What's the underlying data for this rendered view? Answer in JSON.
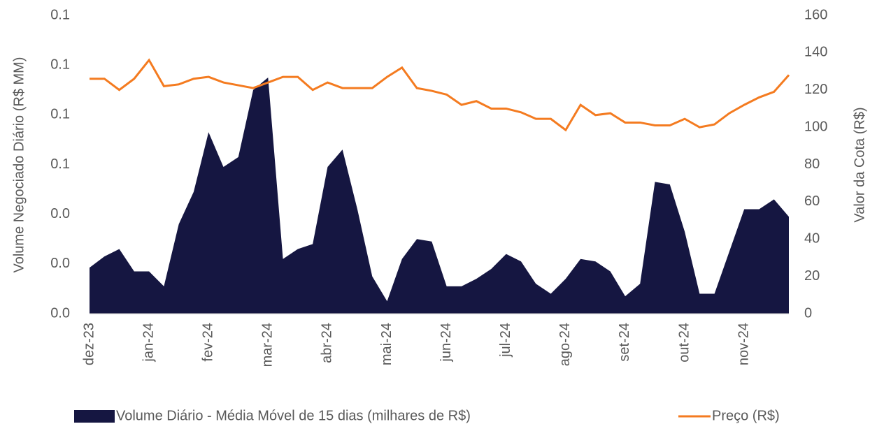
{
  "chart_data": {
    "type": "combo",
    "ylabel": "Volume Negociado Diário (R$ MM)",
    "y2label": "Valor da Cota (R$)",
    "categories": [
      "dez-23",
      null,
      null,
      null,
      "jan-24",
      null,
      null,
      null,
      "fev-24",
      null,
      null,
      null,
      "mar-24",
      null,
      null,
      null,
      "abr-24",
      null,
      null,
      null,
      "mai-24",
      null,
      null,
      null,
      "jun-24",
      null,
      null,
      null,
      "jul-24",
      null,
      null,
      null,
      "ago-24",
      null,
      null,
      null,
      "set-24",
      null,
      null,
      null,
      "out-24",
      null,
      null,
      null,
      "nov-24",
      null,
      null,
      null
    ],
    "series": [
      {
        "name": "Volume Diário - Média Móvel de 15 dias (milhares de R$)",
        "type": "area",
        "color": "#151641",
        "values": [
          0.0185,
          0.023,
          0.026,
          0.017,
          0.017,
          0.011,
          0.036,
          0.049,
          0.073,
          0.059,
          0.063,
          0.09,
          0.095,
          0.022,
          0.026,
          0.028,
          0.059,
          0.066,
          0.042,
          0.015,
          0.005,
          0.022,
          0.03,
          0.029,
          0.011,
          0.011,
          0.014,
          0.018,
          0.024,
          0.021,
          0.012,
          0.008,
          0.014,
          0.022,
          0.021,
          0.017,
          0.007,
          0.012,
          0.053,
          0.052,
          0.033,
          0.008,
          0.008,
          0.025,
          0.042,
          0.042,
          0.046,
          0.039
        ]
      },
      {
        "name": "Preço (R$)",
        "type": "line",
        "color": "#f47b20",
        "axis": "y2",
        "values": [
          126,
          126,
          120,
          126,
          136,
          122,
          123,
          126,
          127,
          124,
          122.5,
          121,
          124,
          127,
          127,
          120,
          124,
          121,
          121,
          121,
          127,
          132,
          121,
          119.5,
          117.5,
          112,
          114,
          110,
          110,
          108,
          104.5,
          104.5,
          98.5,
          112,
          106.5,
          107.5,
          102.5,
          102.5,
          101,
          101,
          104.5,
          100,
          101.5,
          107.5,
          112,
          116,
          119,
          128
        ]
      }
    ],
    "ylim": [
      0,
      0.12
    ],
    "yticks": [
      {
        "value": 0,
        "label": "0.0"
      },
      {
        "value": 0.02,
        "label": "0.0"
      },
      {
        "value": 0.04,
        "label": "0.0"
      },
      {
        "value": 0.06,
        "label": "0.1"
      },
      {
        "value": 0.08,
        "label": "0.1"
      },
      {
        "value": 0.1,
        "label": "0.1"
      },
      {
        "value": 0.12,
        "label": "0.1"
      }
    ],
    "y2lim": [
      0,
      160
    ],
    "y2ticks": [
      0,
      20,
      40,
      60,
      80,
      100,
      120,
      140,
      160
    ],
    "grid": false,
    "legend": "bottom"
  }
}
